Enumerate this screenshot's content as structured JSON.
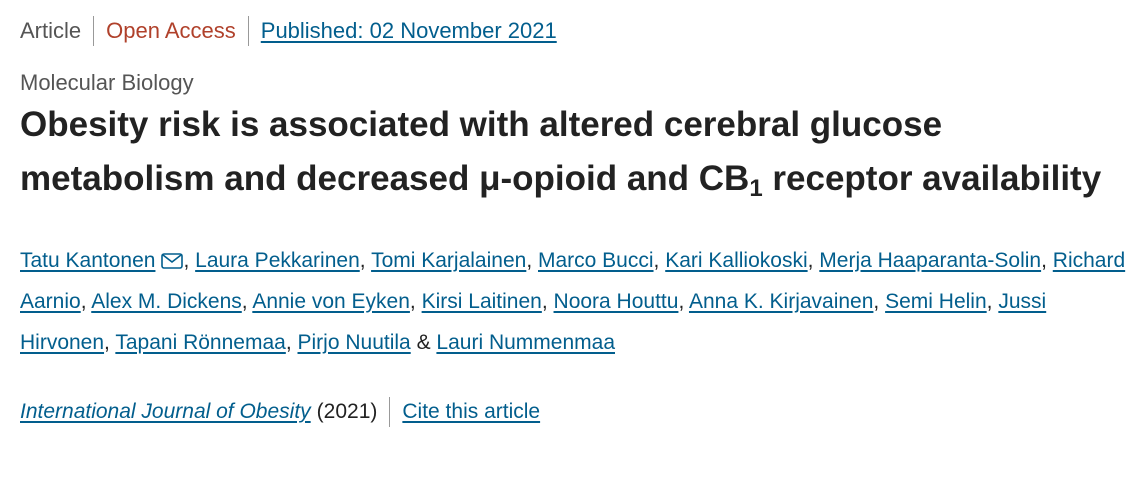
{
  "header": {
    "type": "Article",
    "access": "Open Access",
    "published": "Published: 02 November 2021"
  },
  "subject": "Molecular Biology",
  "title": {
    "before": "Obesity risk is associated with altered cerebral glucose metabolism and decreased μ-opioid and CB",
    "subscript": "1",
    "after": " receptor availability"
  },
  "authors": [
    {
      "name": "Tatu Kantonen",
      "sep": ","
    },
    {
      "name": "Laura Pekkarinen",
      "sep": ","
    },
    {
      "name": "Tomi Karjalainen",
      "sep": ","
    },
    {
      "name": "Marco Bucci",
      "sep": ","
    },
    {
      "name": "Kari Kalliokoski",
      "sep": ","
    },
    {
      "name": "Merja Haaparanta-Solin",
      "sep": ","
    },
    {
      "name": "Richard Aarnio",
      "sep": ","
    },
    {
      "name": "Alex M. Dickens",
      "sep": ","
    },
    {
      "name": "Annie von Eyken",
      "sep": ","
    },
    {
      "name": "Kirsi Laitinen",
      "sep": ","
    },
    {
      "name": "Noora Houttu",
      "sep": ","
    },
    {
      "name": "Anna K. Kirjavainen",
      "sep": ","
    },
    {
      "name": "Semi Helin",
      "sep": ","
    },
    {
      "name": "Jussi Hirvonen",
      "sep": ","
    },
    {
      "name": "Tapani Rönnemaa",
      "sep": ","
    },
    {
      "name": "Pirjo Nuutila",
      "sep": "&"
    },
    {
      "name": "Lauri Nummenmaa",
      "sep": null
    }
  ],
  "citation": {
    "journal": "International Journal of Obesity",
    "year": "(2021)",
    "cite": "Cite this article"
  }
}
